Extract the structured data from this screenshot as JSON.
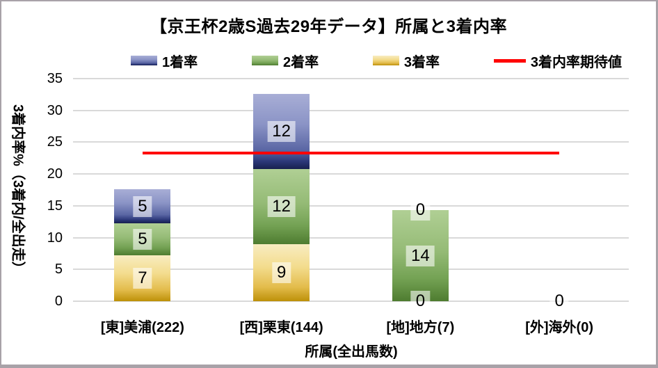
{
  "chart_data": {
    "type": "bar",
    "stacked": true,
    "title": "【京王杯2歳S過去29年データ】所属と3着内率",
    "xlabel": "所属(全出馬数)",
    "ylabel": "3着内率%（3着内/全出走）",
    "ylim": [
      0,
      35
    ],
    "yticks": [
      0,
      5,
      10,
      15,
      20,
      25,
      30,
      35
    ],
    "grid": "horizontal",
    "legend_position": "top",
    "categories": [
      "[東]美浦(222)",
      "[西]栗東(144)",
      "[地]地方(7)",
      "[外]海外(0)"
    ],
    "series": [
      {
        "name": "3着率",
        "color_key": "yellow",
        "values": [
          7.2,
          9.0,
          0,
          0
        ],
        "labels": [
          "7",
          "9",
          "0",
          "0"
        ]
      },
      {
        "name": "2着率",
        "color_key": "green",
        "values": [
          5.0,
          11.8,
          14.3,
          0
        ],
        "labels": [
          "5",
          "12",
          "14",
          ""
        ]
      },
      {
        "name": "1着率",
        "color_key": "blue",
        "values": [
          5.4,
          11.8,
          0,
          0
        ],
        "labels": [
          "5",
          "12",
          "0",
          ""
        ]
      }
    ],
    "legend": [
      {
        "label": "1着率",
        "swatch": "blue"
      },
      {
        "label": "2着率",
        "swatch": "green"
      },
      {
        "label": "3着率",
        "swatch": "yellow"
      },
      {
        "label": "3着内率期待値",
        "swatch": "red-line"
      }
    ],
    "expected_line": {
      "name": "3着内率期待値",
      "value": 23.3,
      "color": "#ff0000",
      "spans_categories": [
        0,
        3
      ]
    }
  },
  "colors": {
    "bar_blue_top": "#a8aed6",
    "bar_blue_bottom": "#17204f",
    "bar_green_top": "#b0cf94",
    "bar_green_bottom": "#4e7c30",
    "bar_yellow_top": "#f8ecc1",
    "bar_yellow_bottom": "#bd9008",
    "expected_line": "#ff0000",
    "gridline": "#d9d9d9",
    "chart_border": "#a8a2a8",
    "label_box_bg": "rgba(255,255,255,0.58)"
  }
}
